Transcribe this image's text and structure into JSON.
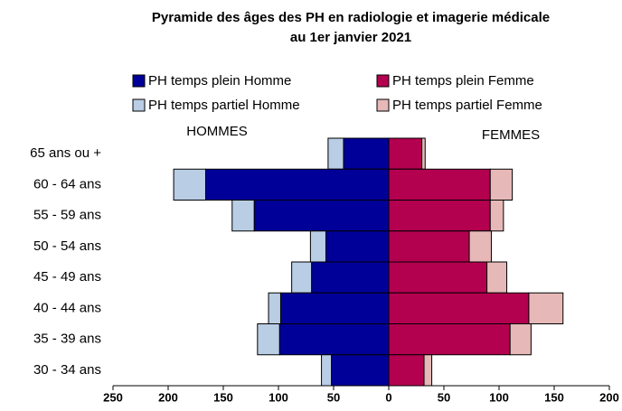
{
  "chart_data": {
    "type": "pyramid",
    "title": "Pyramide des âges des PH en radiologie et imagerie médicale",
    "subtitle": "au 1er janvier 2021",
    "left_label": "HOMMES",
    "right_label": "FEMMES",
    "categories": [
      "65 ans ou +",
      "60 - 64 ans",
      "55 - 59 ans",
      "50 - 54 ans",
      "45 - 49 ans",
      "40 - 44 ans",
      "35 - 39 ans",
      "30 - 34 ans"
    ],
    "series": [
      {
        "name": "PH temps plein Homme",
        "color": "#000099",
        "side": "left",
        "values": [
          41,
          166,
          122,
          57,
          70,
          98,
          99,
          52
        ]
      },
      {
        "name": "PH temps plein Femme",
        "color": "#b3004f",
        "side": "right",
        "values": [
          30,
          92,
          92,
          73,
          89,
          127,
          110,
          32
        ]
      },
      {
        "name": "PH temps partiel Homme",
        "color": "#b9cde5",
        "side": "left",
        "values": [
          14,
          29,
          20,
          14,
          18,
          11,
          20,
          9
        ]
      },
      {
        "name": "PH temps partiel Femme",
        "color": "#e6b9b8",
        "side": "right",
        "values": [
          3,
          20,
          12,
          20,
          18,
          31,
          19,
          7
        ]
      }
    ],
    "xlim": [
      -250,
      200
    ],
    "xticks": [
      {
        "value": -250,
        "label": "250"
      },
      {
        "value": -200,
        "label": "200"
      },
      {
        "value": -150,
        "label": "150"
      },
      {
        "value": -100,
        "label": "100"
      },
      {
        "value": -50,
        "label": "50"
      },
      0,
      50,
      100,
      150,
      200
    ]
  }
}
